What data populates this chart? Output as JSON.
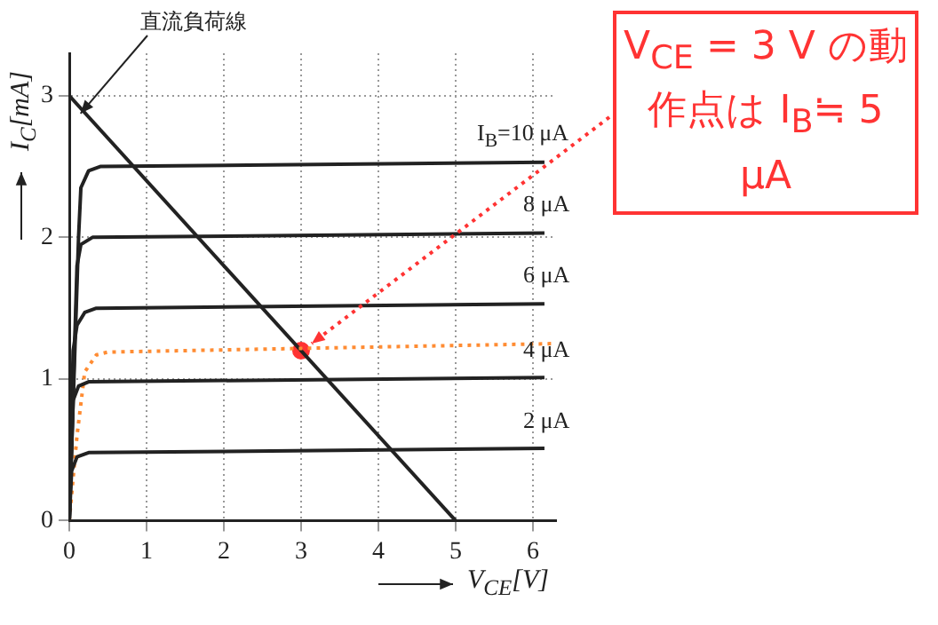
{
  "chart_data": {
    "type": "line",
    "xlabel": "V$_{CE}$[V]",
    "ylabel": "I$_{C}$[mA]",
    "xlim": [
      0,
      6.3
    ],
    "ylim": [
      0,
      3.3
    ],
    "xticks": [
      0,
      1,
      2,
      3,
      4,
      5,
      6
    ],
    "yticks": [
      0,
      1,
      2,
      3
    ],
    "grid": true,
    "line_style": "solid",
    "marker": "none",
    "annotations": [
      {
        "text": "直流負荷線",
        "x": 0.1,
        "y": 2.85
      },
      {
        "text": "V$_{CE}$ = 3 V の動作点は I$_{B}$≒ 5 μA",
        "x": 3,
        "y": 1.2
      }
    ],
    "series": [
      {
        "name": "I$_{B}$=10 μA",
        "color": "#222222",
        "x": [
          0,
          0.12,
          0.15,
          0.25,
          0.4,
          6.15
        ],
        "values": [
          0,
          2.0,
          2.35,
          2.47,
          2.5,
          2.53
        ]
      },
      {
        "name": "8 μA",
        "color": "#222222",
        "x": [
          0,
          0.1,
          0.15,
          0.3,
          6.15
        ],
        "values": [
          0,
          1.8,
          1.95,
          2.0,
          2.03
        ]
      },
      {
        "name": "6 μA",
        "color": "#222222",
        "x": [
          0,
          0.05,
          0.1,
          0.2,
          0.35,
          6.15
        ],
        "values": [
          0,
          1.2,
          1.38,
          1.47,
          1.5,
          1.53
        ]
      },
      {
        "name": "4 μA",
        "color": "#222222",
        "x": [
          0,
          0.05,
          0.12,
          0.25,
          6.15
        ],
        "values": [
          0,
          0.85,
          0.95,
          0.98,
          1.01
        ]
      },
      {
        "name": "2 μA",
        "color": "#222222",
        "x": [
          0,
          0.03,
          0.1,
          0.25,
          6.15
        ],
        "values": [
          0,
          0.35,
          0.45,
          0.48,
          0.51
        ]
      },
      {
        "color": "#ff8c33",
        "line_style": "dotted",
        "x": [
          0,
          0.1,
          0.2,
          0.35,
          0.5,
          6.3
        ],
        "values": [
          0,
          0.6,
          1.05,
          1.17,
          1.19,
          1.25
        ]
      },
      {
        "color": "#222222",
        "x": [
          0,
          5
        ],
        "values": [
          3,
          0
        ]
      },
      {
        "type": "scatter",
        "marker": "circle",
        "color": "#ff3333",
        "x": [
          3
        ],
        "values": [
          1.2
        ]
      }
    ]
  }
}
